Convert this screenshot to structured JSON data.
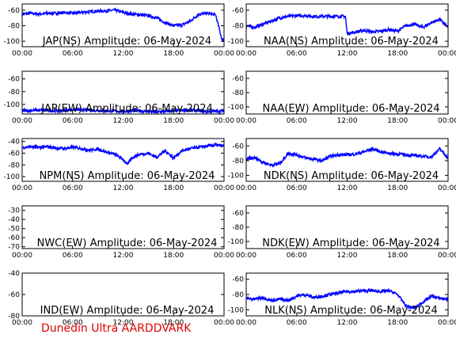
{
  "footer": "Dunedin Ultra AARDDVARK",
  "colors": {
    "trace": "#0000ff",
    "axes": "#000000",
    "footer": "#e00000"
  },
  "chart_data": [
    {
      "type": "line",
      "title": "JAP(NS) Amplitude: 06-May-2024",
      "x_ticks": [
        "00:00",
        "06:00",
        "12:00",
        "18:00",
        "00:00"
      ],
      "ylim": [
        -107,
        -52
      ],
      "y_ticks": [
        -60,
        -80,
        -100
      ],
      "series": [
        {
          "x": [
            0,
            1,
            2,
            3,
            4,
            5,
            6,
            7,
            8,
            9,
            10,
            11,
            12,
            13,
            14,
            15,
            16,
            17,
            18,
            19,
            20,
            21,
            22,
            23,
            23.8,
            24
          ],
          "y": [
            -65,
            -64,
            -65,
            -64,
            -64,
            -63,
            -64,
            -63,
            -62,
            -61,
            -61,
            -60,
            -63,
            -65,
            -66,
            -67,
            -70,
            -76,
            -80,
            -79,
            -74,
            -65,
            -64,
            -66,
            -100,
            -95
          ]
        }
      ]
    },
    {
      "type": "line",
      "title": "NAA(NS) Amplitude: 06-May-2024",
      "x_ticks": [
        "00:00",
        "06:00",
        "12:00",
        "18:00",
        "00:00"
      ],
      "ylim": [
        -107,
        -52
      ],
      "y_ticks": [
        -60,
        -80,
        -100
      ],
      "series": [
        {
          "x": [
            0,
            1,
            2,
            3,
            4,
            5,
            6,
            7,
            8,
            9,
            10,
            11,
            11.8,
            12,
            13,
            14,
            15,
            16,
            17,
            18,
            19,
            20,
            21,
            22,
            23,
            24
          ],
          "y": [
            -80,
            -82,
            -78,
            -74,
            -70,
            -68,
            -67,
            -67,
            -68,
            -68,
            -68,
            -68,
            -68,
            -90,
            -88,
            -86,
            -88,
            -87,
            -85,
            -87,
            -80,
            -78,
            -82,
            -76,
            -72,
            -82
          ]
        }
      ]
    },
    {
      "type": "line",
      "title": "JAP(EW) Amplitude: 06-May-2024",
      "x_ticks": [
        "00:00",
        "06:00",
        "12:00",
        "18:00",
        "00:00"
      ],
      "ylim": [
        -115,
        -48
      ],
      "y_ticks": [
        -60,
        -80,
        -100
      ],
      "series": [
        {
          "x": [
            0,
            2,
            4,
            6,
            8,
            10,
            12,
            14,
            16,
            18,
            20,
            22,
            24
          ],
          "y": [
            -110,
            -109,
            -110,
            -108,
            -109,
            -110,
            -111,
            -110,
            -112,
            -110,
            -109,
            -111,
            -110
          ]
        }
      ]
    },
    {
      "type": "line",
      "title": "NAA(EW) Amplitude: 06-May-2024",
      "x_ticks": [
        "00:00",
        "06:00",
        "12:00",
        "18:00",
        "00:00"
      ],
      "ylim": [
        -110,
        -50
      ],
      "y_ticks": [
        -60,
        -80,
        -100
      ],
      "series": []
    },
    {
      "type": "line",
      "title": "NPM(NS) Amplitude: 06-May-2024",
      "x_ticks": [
        "00:00",
        "06:00",
        "12:00",
        "18:00",
        "00:00"
      ],
      "ylim": [
        -108,
        -35
      ],
      "y_ticks": [
        -40,
        -60,
        -80,
        -100
      ],
      "series": [
        {
          "x": [
            0,
            1,
            2,
            3,
            4,
            5,
            6,
            7,
            8,
            9,
            10,
            11,
            12,
            12.5,
            13,
            14,
            15,
            16,
            17,
            18,
            19,
            20,
            21,
            22,
            23,
            24
          ],
          "y": [
            -50,
            -49,
            -50,
            -49,
            -51,
            -52,
            -50,
            -52,
            -55,
            -53,
            -58,
            -62,
            -70,
            -80,
            -68,
            -62,
            -60,
            -67,
            -56,
            -68,
            -56,
            -52,
            -50,
            -48,
            -46,
            -48
          ]
        }
      ]
    },
    {
      "type": "line",
      "title": "NDK(NS) Amplitude: 06-May-2024",
      "x_ticks": [
        "00:00",
        "06:00",
        "12:00",
        "18:00",
        "00:00"
      ],
      "ylim": [
        -108,
        -50
      ],
      "y_ticks": [
        -60,
        -80,
        -100
      ],
      "series": [
        {
          "x": [
            0,
            1,
            2,
            3,
            4,
            5,
            6,
            7,
            8,
            9,
            10,
            11,
            12,
            13,
            14,
            15,
            16,
            17,
            18,
            19,
            20,
            21,
            22,
            23,
            24
          ],
          "y": [
            -78,
            -76,
            -82,
            -86,
            -84,
            -70,
            -72,
            -76,
            -78,
            -80,
            -74,
            -72,
            -72,
            -71,
            -68,
            -64,
            -68,
            -70,
            -71,
            -72,
            -73,
            -74,
            -75,
            -64,
            -76
          ]
        }
      ]
    },
    {
      "type": "line",
      "title": "NWC(EW) Amplitude: 06-May-2024",
      "x_ticks": [
        "00:00",
        "06:00",
        "12:00",
        "18:00",
        "00:00"
      ],
      "ylim": [
        -72,
        -25
      ],
      "y_ticks": [
        -30,
        -40,
        -50,
        -60,
        -70
      ],
      "series": []
    },
    {
      "type": "line",
      "title": "NDK(EW) Amplitude: 06-May-2024",
      "x_ticks": [
        "00:00",
        "06:00",
        "12:00",
        "18:00",
        "00:00"
      ],
      "ylim": [
        -110,
        -50
      ],
      "y_ticks": [
        -60,
        -80,
        -100
      ],
      "series": []
    },
    {
      "type": "line",
      "title": "IND(EW) Amplitude: 06-May-2024",
      "x_ticks": [
        "00:00",
        "06:00",
        "12:00",
        "18:00",
        "00:00"
      ],
      "ylim": [
        -80,
        -40
      ],
      "y_ticks": [
        -40,
        -60,
        -80
      ],
      "series": []
    },
    {
      "type": "line",
      "title": "NLK(NS) Amplitude: 06-May-2024",
      "x_ticks": [
        "00:00",
        "06:00",
        "12:00",
        "18:00",
        "00:00"
      ],
      "ylim": [
        -108,
        -52
      ],
      "y_ticks": [
        -60,
        -80,
        -100
      ],
      "series": [
        {
          "x": [
            0,
            1,
            2,
            3,
            4,
            5,
            6,
            7,
            8,
            9,
            10,
            11,
            12,
            13,
            14,
            15,
            16,
            17,
            18,
            19,
            20,
            21,
            22,
            23,
            24
          ],
          "y": [
            -85,
            -86,
            -84,
            -88,
            -86,
            -88,
            -82,
            -80,
            -84,
            -82,
            -80,
            -78,
            -76,
            -76,
            -75,
            -75,
            -76,
            -75,
            -80,
            -95,
            -98,
            -90,
            -82,
            -85,
            -86
          ]
        }
      ]
    }
  ]
}
